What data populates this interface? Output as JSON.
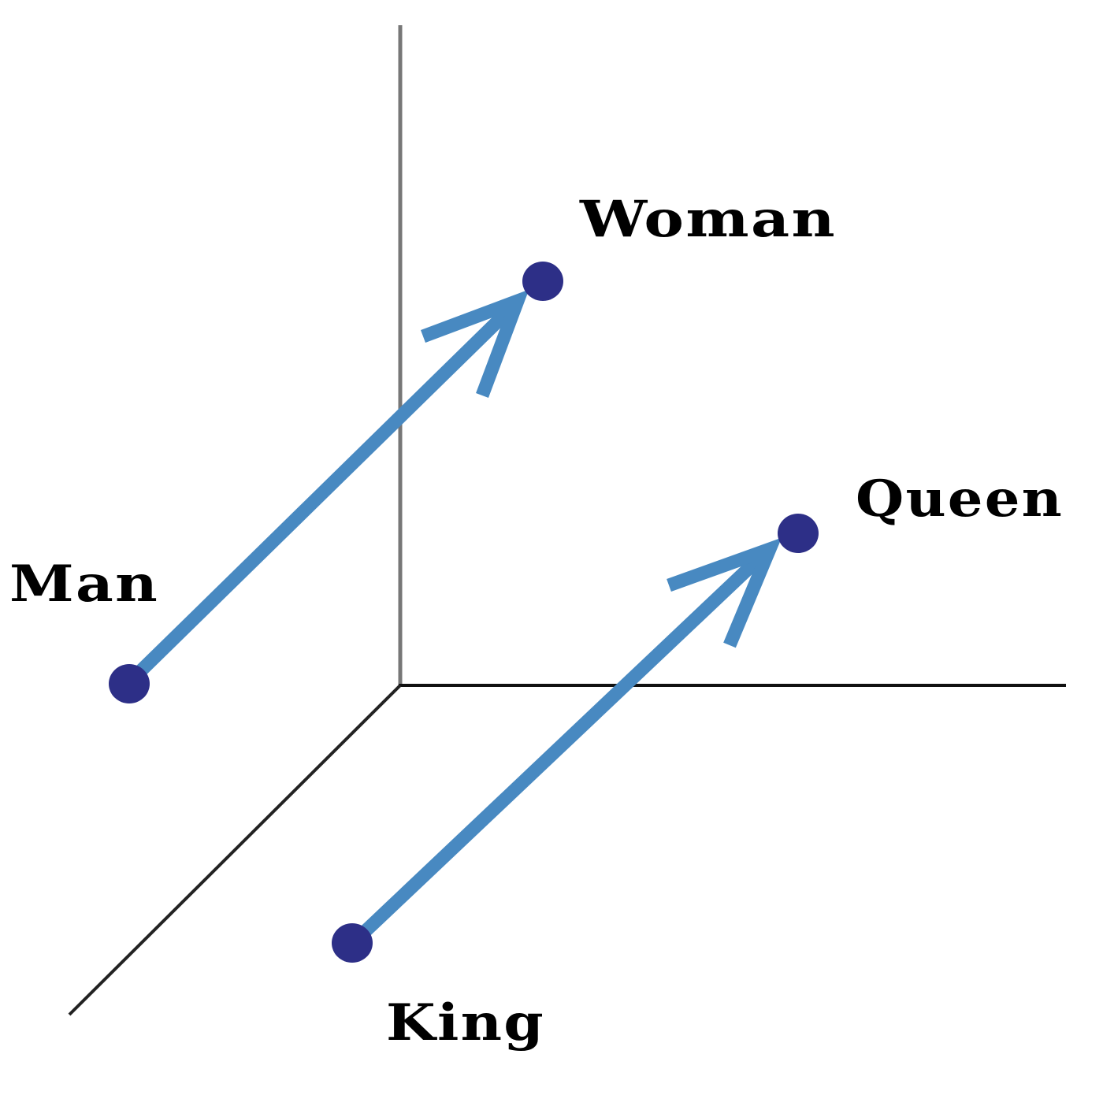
{
  "colors": {
    "background": "#ffffff",
    "axis_vertical": "#777777",
    "axis_horizontal": "#111111",
    "axis_depth": "#222222",
    "arrow": "#4889c1",
    "point": "#2d2f87",
    "label": "#000000"
  },
  "labels": {
    "woman": "Woman",
    "queen": "Queen",
    "man": "Man",
    "king": "King"
  },
  "points": [
    "Man",
    "Woman",
    "King",
    "Queen"
  ],
  "arrows": [
    {
      "from": "Man",
      "to": "Woman"
    },
    {
      "from": "King",
      "to": "Queen"
    }
  ]
}
